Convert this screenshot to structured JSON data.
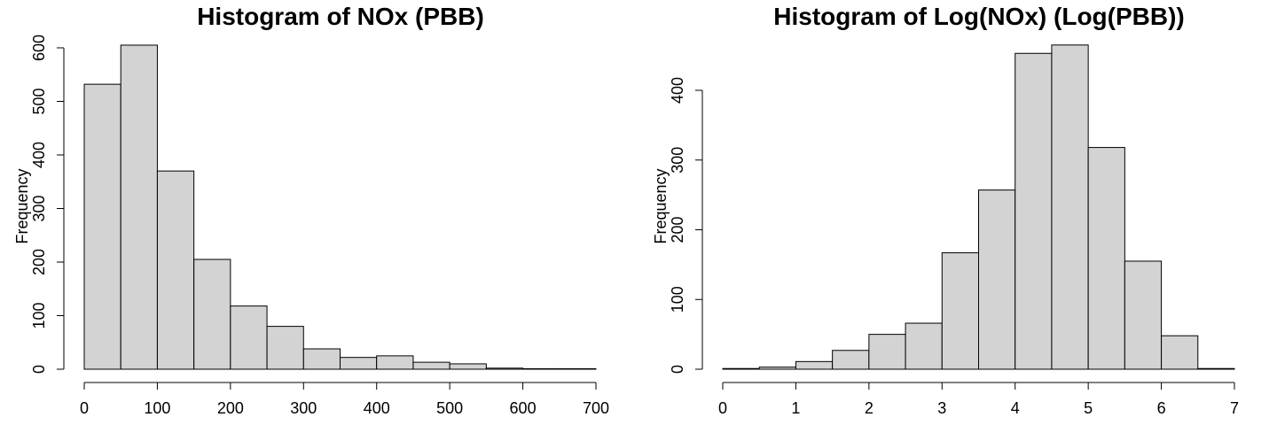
{
  "colors": {
    "bar_fill": "#d3d3d3",
    "bar_stroke": "#000000"
  },
  "chart_data": [
    {
      "type": "bar",
      "title": "Histogram of NOx (PBB)",
      "xlabel": "",
      "ylabel": "Frequency",
      "bin_edges": [
        0,
        50,
        100,
        150,
        200,
        250,
        300,
        350,
        400,
        450,
        500,
        550,
        600,
        650,
        700
      ],
      "values": [
        532,
        605,
        370,
        205,
        118,
        80,
        38,
        22,
        25,
        13,
        10,
        2,
        1,
        1
      ],
      "xlim": [
        0,
        700
      ],
      "ylim": [
        0,
        600
      ],
      "xticks": [
        0,
        100,
        200,
        300,
        400,
        500,
        600,
        700
      ],
      "yticks": [
        0,
        100,
        200,
        300,
        400,
        500,
        600
      ],
      "grid": false
    },
    {
      "type": "bar",
      "title": "Histogram of Log(NOx) (Log(PBB))",
      "xlabel": "",
      "ylabel": "Frequency",
      "bin_edges": [
        0,
        0.5,
        1,
        1.5,
        2,
        2.5,
        3,
        3.5,
        4,
        4.5,
        5,
        5.5,
        6,
        6.5,
        7
      ],
      "values": [
        1,
        3,
        11,
        27,
        50,
        66,
        167,
        257,
        453,
        465,
        318,
        155,
        48,
        1
      ],
      "xlim": [
        0,
        7
      ],
      "ylim": [
        0,
        400
      ],
      "xticks": [
        0,
        1,
        2,
        3,
        4,
        5,
        6,
        7
      ],
      "yticks": [
        0,
        100,
        200,
        300,
        400
      ],
      "grid": false
    }
  ]
}
